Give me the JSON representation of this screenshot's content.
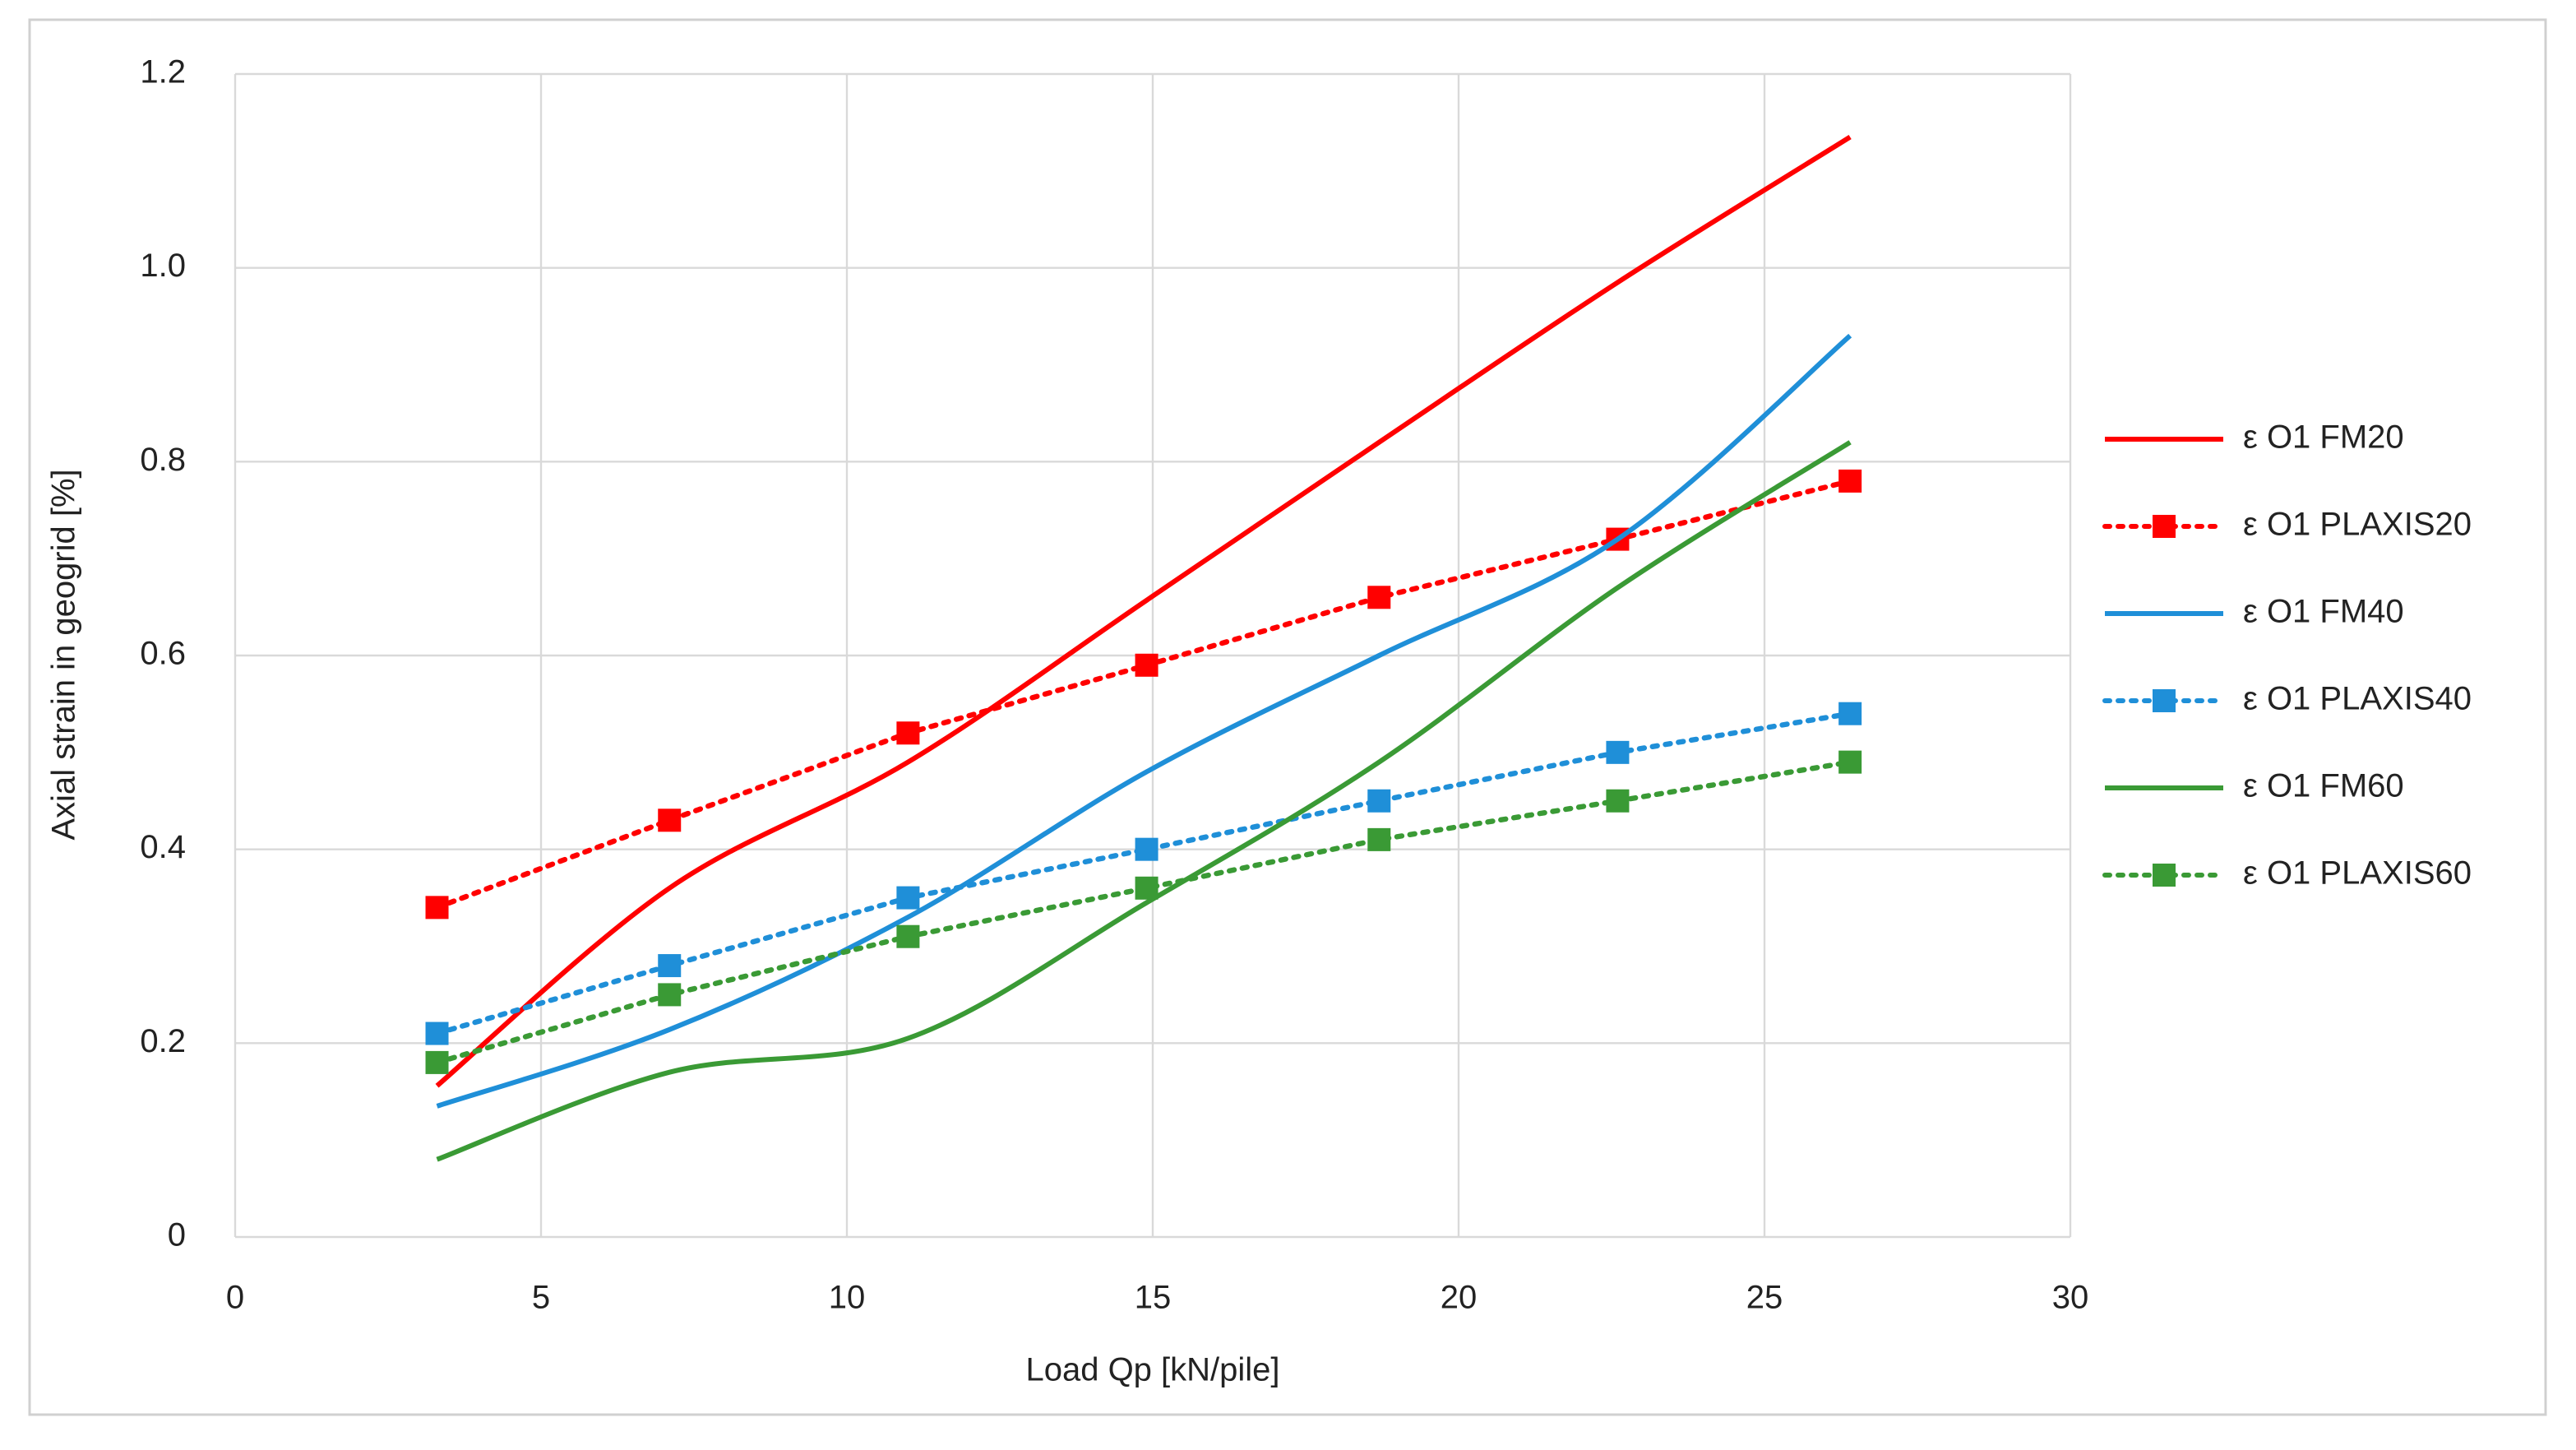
{
  "chart_data": {
    "type": "line",
    "x_label": "Load Qp [kN/pile]",
    "y_label": "Axial strain in geogrid [%]",
    "x": [
      3.3,
      7.1,
      11.0,
      14.9,
      18.7,
      22.6,
      26.4
    ],
    "xlim": [
      0,
      30
    ],
    "xticks": [
      0,
      5,
      10,
      15,
      20,
      25,
      30
    ],
    "ylim": [
      0,
      1.2
    ],
    "yticks": [
      0,
      0.2,
      0.4,
      0.6,
      0.8,
      {
        "value": 1,
        "label": "1.0"
      },
      1.2
    ],
    "grid": true,
    "legend": "right",
    "series": [
      {
        "name": "ε O1 FM20",
        "color": "#ff0000",
        "style": "solid",
        "values": [
          0.156,
          0.36,
          0.49,
          0.657,
          0.82,
          0.985,
          1.135
        ]
      },
      {
        "name": "ε O1 PLAXIS20",
        "color": "#ff0000",
        "style": "dotted",
        "marker": "square",
        "values": [
          0.34,
          0.43,
          0.52,
          0.59,
          0.66,
          0.72,
          0.78
        ]
      },
      {
        "name": "ε O1 FM40",
        "color": "#1f8fd8",
        "style": "solid",
        "values": [
          0.135,
          0.214,
          0.33,
          0.48,
          0.6,
          0.72,
          0.93
        ]
      },
      {
        "name": "ε O1 PLAXIS40",
        "color": "#1f8fd8",
        "style": "dotted",
        "marker": "square",
        "values": [
          0.21,
          0.28,
          0.35,
          0.4,
          0.45,
          0.5,
          0.54
        ]
      },
      {
        "name": "ε O1 FM60",
        "color": "#3a9a35",
        "style": "solid",
        "values": [
          0.08,
          0.17,
          0.205,
          0.345,
          0.49,
          0.67,
          0.82
        ]
      },
      {
        "name": "ε O1 PLAXIS60",
        "color": "#3a9a35",
        "style": "dotted",
        "marker": "square",
        "values": [
          0.18,
          0.25,
          0.31,
          0.36,
          0.41,
          0.45,
          0.49
        ]
      }
    ]
  }
}
